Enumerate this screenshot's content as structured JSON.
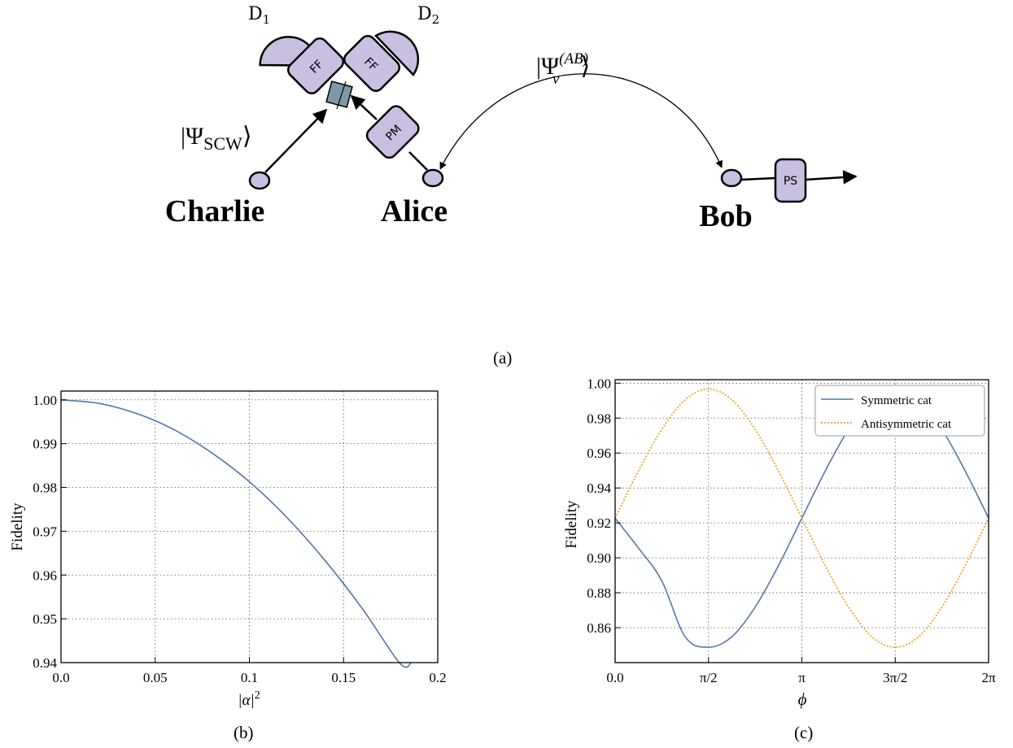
{
  "figure": {
    "caption_a": "(a)",
    "caption_b": "(b)",
    "caption_c": "(c)"
  },
  "diagram": {
    "colors": {
      "device_fill": "#c9bfe0",
      "splitter_fill": "#7f98a8",
      "line": "#000000"
    },
    "parties": {
      "charlie": "Charlie",
      "alice": "Alice",
      "bob": "Bob"
    },
    "detectors": {
      "d1": "D",
      "d1_sub": "1",
      "d2": "D",
      "d2_sub": "2"
    },
    "devices": {
      "ff_left": "FF",
      "ff_right": "FF",
      "pm": "PM",
      "ps": "PS"
    },
    "states": {
      "scw": "|Ψ",
      "scw_sub": "SCW",
      "scw_close": "⟩",
      "ab": "|Ψ",
      "ab_sup": "(AB)",
      "ab_sub": "v",
      "ab_close": "⟩"
    }
  },
  "chart_data": [
    {
      "type": "line",
      "id": "b",
      "xlabel": "|α|",
      "xlabel_sup": "2",
      "ylabel": "Fidelity",
      "xlim": [
        0,
        0.2
      ],
      "ylim": [
        0.94,
        1.002
      ],
      "xticks": [
        0,
        0.05,
        0.1,
        0.15,
        0.2
      ],
      "xtick_labels": [
        "0.0",
        "0.05",
        "0.1",
        "0.15",
        "0.2"
      ],
      "yticks": [
        0.94,
        0.95,
        0.96,
        0.97,
        0.98,
        0.99,
        1.0
      ],
      "ytick_labels": [
        "0.94",
        "0.95",
        "0.96",
        "0.97",
        "0.98",
        "0.99",
        "1.00"
      ],
      "grid": true,
      "series": [
        {
          "color": "#5477a8",
          "style": "solid",
          "x": [
            0,
            0.02,
            0.04,
            0.06,
            0.08,
            0.1,
            0.12,
            0.14,
            0.16,
            0.18,
            0.186
          ],
          "y": [
            1.0,
            0.9992,
            0.9969,
            0.9932,
            0.9879,
            0.9813,
            0.9731,
            0.9634,
            0.9523,
            0.9398,
            0.94
          ]
        }
      ]
    },
    {
      "type": "line",
      "id": "c",
      "xlabel": "ϕ",
      "ylabel": "Fidelity",
      "xlim": [
        0,
        6.2832
      ],
      "ylim": [
        0.84,
        1.002
      ],
      "xticks": [
        0,
        1.5708,
        3.1416,
        4.7124,
        6.2832
      ],
      "xtick_labels": [
        "0.0",
        "π/2",
        "π",
        "3π/2",
        "2π"
      ],
      "yticks": [
        0.86,
        0.88,
        0.9,
        0.92,
        0.94,
        0.96,
        0.98,
        1.0
      ],
      "ytick_labels": [
        "0.86",
        "0.88",
        "0.90",
        "0.92",
        "0.94",
        "0.96",
        "0.98",
        "1.00"
      ],
      "grid": true,
      "legend_position": "top-right",
      "series": [
        {
          "name": "Symmetric cat",
          "color": "#5477a8",
          "style": "solid",
          "x": [
            0,
            0.3927,
            0.7854,
            1.1781,
            1.5708,
            1.9635,
            2.3562,
            2.7489,
            3.1416,
            3.5343,
            3.927,
            4.3197,
            4.7124,
            5.1051,
            5.4978,
            5.8905,
            6.2832
          ],
          "y": [
            0.9227,
            0.9056,
            0.8868,
            0.8548,
            0.8488,
            0.8548,
            0.8718,
            0.8956,
            0.9227,
            0.9497,
            0.9735,
            0.9905,
            0.9967,
            0.9905,
            0.9735,
            0.9497,
            0.9227
          ]
        },
        {
          "name": "Antisymmetric cat",
          "color": "#e5a430",
          "style": "dotted",
          "x": [
            0,
            0.3927,
            0.7854,
            1.1781,
            1.5708,
            1.9635,
            2.3562,
            2.7489,
            3.1416,
            3.5343,
            3.927,
            4.3197,
            4.7124,
            5.1051,
            5.4978,
            5.8905,
            6.2832
          ],
          "y": [
            0.9227,
            0.9497,
            0.9735,
            0.9905,
            0.9967,
            0.9905,
            0.9735,
            0.9497,
            0.9227,
            0.8956,
            0.8718,
            0.8548,
            0.8488,
            0.8548,
            0.8718,
            0.8956,
            0.9227
          ]
        }
      ]
    }
  ]
}
